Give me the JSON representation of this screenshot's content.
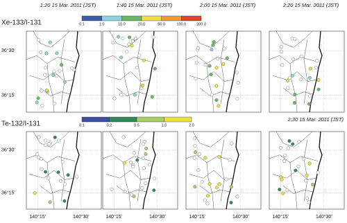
{
  "rows": [
    {
      "label": "Xe-133/I-131",
      "times": [
        "1:20 15 Mar. 2011 (JST)",
        "1:40 15 Mar. 2011 (JST)",
        "2:00 15 Mar. 2011 (JST)",
        "2:20 15 Mar. 2011 (JST)"
      ],
      "colorbar": {
        "ticks": [
          "0.1",
          "1.0",
          "10.0",
          "20.0",
          "50.0",
          "100.0",
          "200.0"
        ],
        "colors": [
          "#3d5aa6",
          "#8fd0dc",
          "#6cb86a",
          "#ece23c",
          "#ef9a34",
          "#d9452d"
        ]
      }
    },
    {
      "label": "Te-132/I-131",
      "times": [
        "2:30 15 Mar. 2011 (JST)"
      ],
      "colorbar": {
        "ticks": [
          "0.1",
          "0.2",
          "0.5",
          "1.0",
          "2.0"
        ],
        "colors": [
          "#3b4fa0",
          "#2e8b57",
          "#a6d064",
          "#ece23c",
          "#d9452d"
        ]
      }
    }
  ],
  "lat_labels": [
    "36°30'",
    "36°15'"
  ],
  "lon_labels": [
    "140°15'",
    "140°30'"
  ]
}
